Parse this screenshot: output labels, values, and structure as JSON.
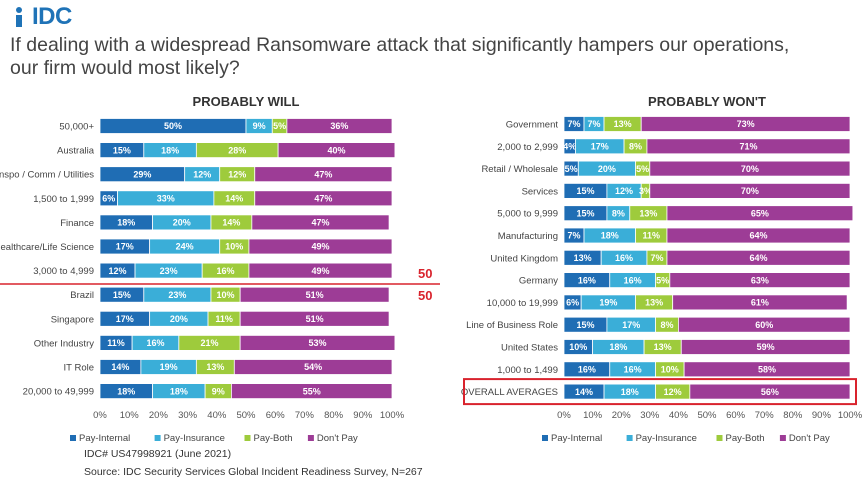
{
  "header": {
    "logo_text": "IDC",
    "title_line1": "If dealing with a widespread Ransomware attack that significantly hampers our operations,",
    "title_line2": "our firm would most likely?"
  },
  "colors": {
    "pay_internal": "#1f6db4",
    "pay_insurance": "#3aaed8",
    "pay_both": "#9ecb3c",
    "dont_pay": "#9d3c96",
    "highlight": "#d9232d"
  },
  "divider": {
    "upper": "50",
    "lower": "50"
  },
  "footer": {
    "doc_id": "IDC# US47998921  (June 2021)",
    "source": "Source:  IDC Security Services Global Incident Readiness Survey, N=267"
  },
  "chart_data": [
    {
      "type": "bar",
      "stacked": true,
      "orientation": "horizontal",
      "title": "PROBABLY WILL",
      "categories": [
        "50,000+",
        "Australia",
        "Transpo / Comm / Utilities",
        "1,500 to 1,999",
        "Finance",
        "Healthcare/Life Science",
        "3,000 to 4,999",
        "Brazil",
        "Singapore",
        "Other Industry",
        "IT Role",
        "20,000 to 49,999"
      ],
      "series": [
        {
          "name": "Pay-Internal",
          "values": [
            50,
            15,
            29,
            6,
            18,
            17,
            12,
            15,
            17,
            11,
            14,
            18
          ]
        },
        {
          "name": "Pay-Insurance",
          "values": [
            9,
            18,
            12,
            33,
            20,
            24,
            23,
            23,
            20,
            16,
            19,
            18
          ]
        },
        {
          "name": "Pay-Both",
          "values": [
            5,
            28,
            12,
            14,
            14,
            10,
            16,
            10,
            11,
            21,
            13,
            9
          ]
        },
        {
          "name": "Don't Pay",
          "values": [
            36,
            40,
            47,
            47,
            47,
            49,
            49,
            51,
            51,
            53,
            54,
            55
          ]
        }
      ],
      "xlim": [
        0,
        100
      ],
      "xticks": [
        "0%",
        "10%",
        "20%",
        "30%",
        "40%",
        "50%",
        "60%",
        "70%",
        "80%",
        "90%",
        "100%"
      ],
      "legend": [
        "Pay-Internal",
        "Pay-Insurance",
        "Pay-Both",
        "Don't Pay"
      ],
      "legend_position": "bottom"
    },
    {
      "type": "bar",
      "stacked": true,
      "orientation": "horizontal",
      "title": "PROBABLY WON'T",
      "categories": [
        "Government",
        "2,000 to 2,999",
        "Retail / Wholesale",
        "Services",
        "5,000 to 9,999",
        "Manufacturing",
        "United Kingdom",
        "Germany",
        "10,000 to 19,999",
        "Line of Business Role",
        "United States",
        "1,000 to 1,499",
        "OVERALL AVERAGES"
      ],
      "series": [
        {
          "name": "Pay-Internal",
          "values": [
            7,
            4,
            5,
            15,
            15,
            7,
            13,
            16,
            6,
            15,
            10,
            16,
            14
          ]
        },
        {
          "name": "Pay-Insurance",
          "values": [
            7,
            17,
            20,
            12,
            8,
            18,
            16,
            16,
            19,
            17,
            18,
            16,
            18
          ]
        },
        {
          "name": "Pay-Both",
          "values": [
            13,
            8,
            5,
            3,
            13,
            11,
            7,
            5,
            13,
            8,
            13,
            10,
            12
          ]
        },
        {
          "name": "Don't Pay",
          "values": [
            73,
            71,
            70,
            70,
            65,
            64,
            64,
            63,
            61,
            60,
            59,
            58,
            56
          ]
        }
      ],
      "highlighted_category": "OVERALL AVERAGES",
      "xlim": [
        0,
        100
      ],
      "xticks": [
        "0%",
        "10%",
        "20%",
        "30%",
        "40%",
        "50%",
        "60%",
        "70%",
        "80%",
        "90%",
        "100%"
      ],
      "legend": [
        "Pay-Internal",
        "Pay-Insurance",
        "Pay-Both",
        "Don't Pay"
      ],
      "legend_position": "bottom"
    }
  ]
}
